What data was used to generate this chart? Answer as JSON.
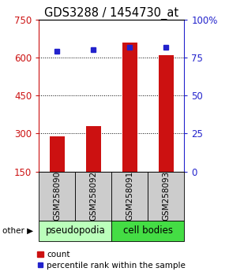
{
  "title": "GDS3288 / 1454730_at",
  "samples": [
    "GSM258090",
    "GSM258092",
    "GSM258091",
    "GSM258093"
  ],
  "count_values": [
    290,
    330,
    660,
    610
  ],
  "percentile_values": [
    79,
    80,
    82,
    82
  ],
  "ylim_left": [
    150,
    750
  ],
  "yticks_left": [
    150,
    300,
    450,
    600,
    750
  ],
  "ylim_right": [
    0,
    100
  ],
  "yticks_right": [
    0,
    25,
    50,
    75,
    100
  ],
  "bar_color": "#cc1111",
  "square_color": "#2222cc",
  "bar_width": 0.4,
  "groups": [
    {
      "label": "pseudopodia",
      "color": "#bbffbb"
    },
    {
      "label": "cell bodies",
      "color": "#44dd44"
    }
  ],
  "other_label": "other",
  "legend_count_label": "count",
  "legend_pct_label": "percentile rank within the sample",
  "background_color": "#ffffff",
  "tick_label_area_color": "#cccccc",
  "title_fontsize": 10.5,
  "tick_fontsize": 8.5,
  "label_fontsize": 7.5,
  "group_fontsize": 8.5,
  "legend_fontsize": 7.5
}
